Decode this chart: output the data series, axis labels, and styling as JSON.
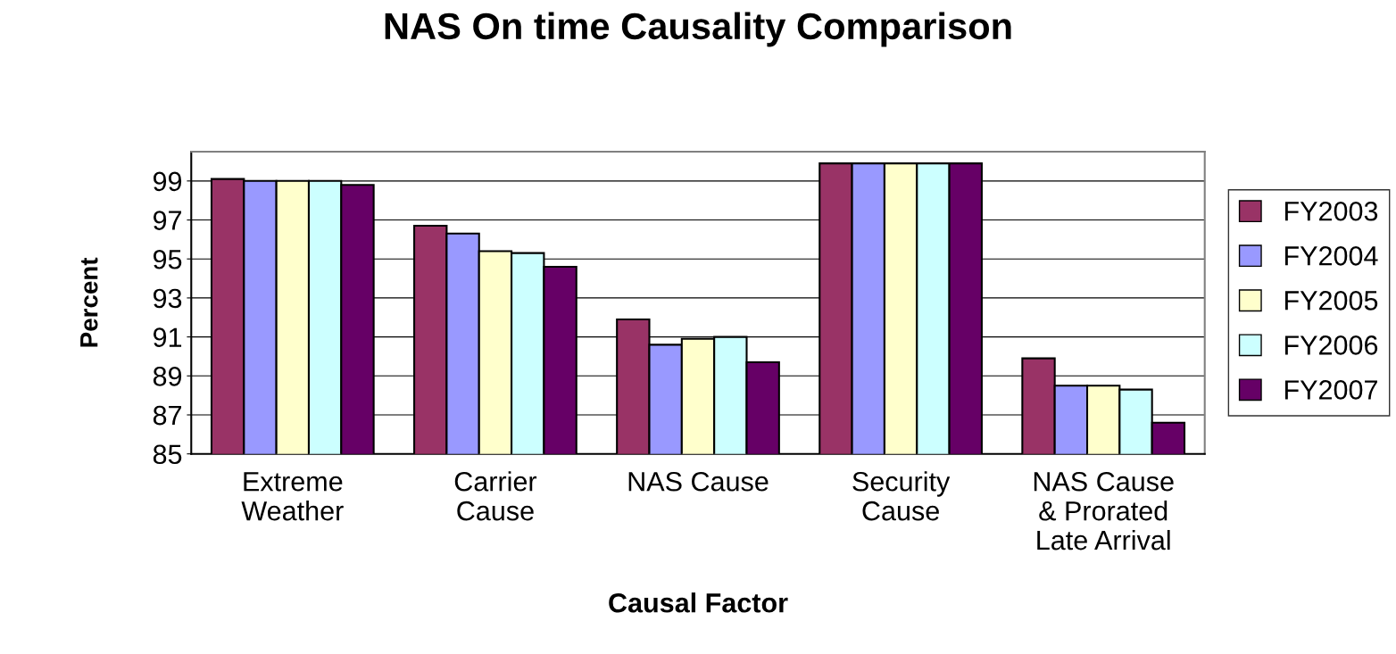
{
  "chart_data": {
    "type": "bar",
    "title": "NAS On time Causality Comparison",
    "xlabel": "Causal Factor",
    "ylabel": "Percent",
    "categories": [
      "Extreme\nWeather",
      "Carrier\nCause",
      "NAS Cause",
      "Security\nCause",
      "NAS Cause\n& Prorated\nLate Arrival"
    ],
    "series": [
      {
        "name": "FY2003",
        "color": "#993366",
        "values": [
          99.1,
          96.7,
          91.9,
          99.9,
          89.9
        ]
      },
      {
        "name": "FY2004",
        "color": "#9999ff",
        "values": [
          99.0,
          96.3,
          90.6,
          99.9,
          88.5
        ]
      },
      {
        "name": "FY2005",
        "color": "#ffffcc",
        "values": [
          99.0,
          95.4,
          90.9,
          99.9,
          88.5
        ]
      },
      {
        "name": "FY2006",
        "color": "#ccffff",
        "values": [
          99.0,
          95.3,
          91.0,
          99.9,
          88.3
        ]
      },
      {
        "name": "FY2007",
        "color": "#660066",
        "values": [
          98.8,
          94.6,
          89.7,
          99.9,
          86.6
        ]
      }
    ],
    "ylim": [
      85,
      100.5
    ],
    "yticks": [
      85,
      87,
      89,
      91,
      93,
      95,
      97,
      99
    ],
    "grid": "y",
    "legend": "right"
  }
}
